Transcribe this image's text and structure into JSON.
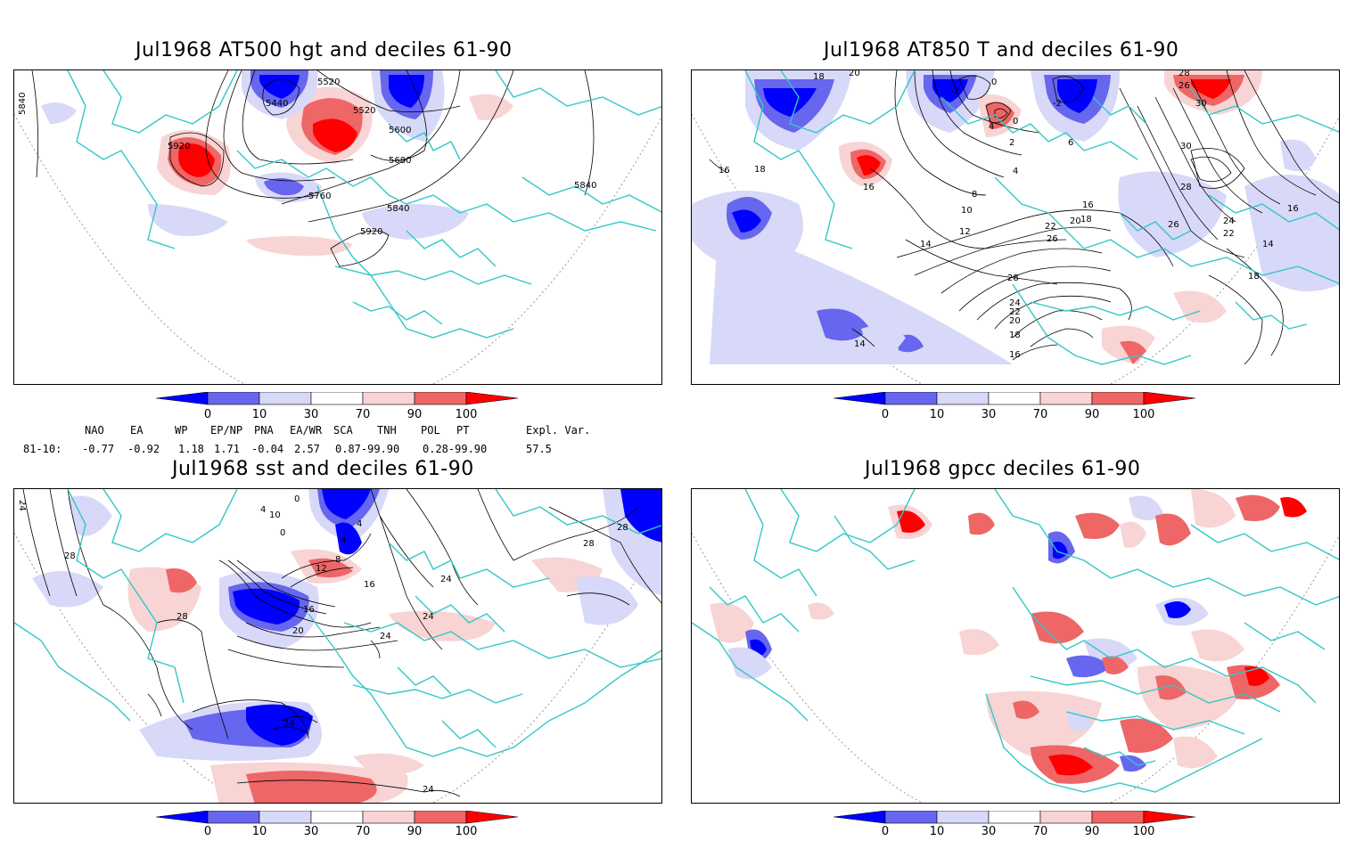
{
  "panels": [
    {
      "id": "p1",
      "title": "Jul1968 AT500 hgt and deciles 61-90",
      "contour_labels": [
        "5840",
        "5520",
        "5440",
        "5520",
        "5600",
        "5920",
        "5680",
        "5760",
        "5840",
        "5920",
        "5840"
      ]
    },
    {
      "id": "p2",
      "title": "Jul1968 AT850 T and deciles 61-90",
      "contour_labels": [
        "18",
        "20",
        "-2",
        "0",
        "-2",
        "26",
        "28",
        "30",
        "4",
        "0",
        "2",
        "6",
        "16",
        "4",
        "30",
        "16",
        "18",
        "8",
        "10",
        "12",
        "16",
        "18",
        "20",
        "22",
        "14",
        "26",
        "24",
        "22",
        "26",
        "28",
        "16",
        "14",
        "18",
        "28",
        "24",
        "22",
        "20",
        "18",
        "16",
        "14"
      ]
    },
    {
      "id": "p3",
      "title": "Jul1968 sst and deciles 61-90",
      "contour_labels": [
        "24",
        "0",
        "4",
        "10",
        "0",
        "4",
        "4",
        "28",
        "28",
        "12",
        "8",
        "16",
        "28",
        "16",
        "24",
        "20",
        "24",
        "28",
        "24",
        "24",
        "24"
      ]
    },
    {
      "id": "p4",
      "title": "Jul1968 gpcc deciles 61-90",
      "contour_labels": []
    }
  ],
  "colorbar": {
    "ticks": [
      "0",
      "10",
      "30",
      "70",
      "90",
      "100"
    ],
    "colors": {
      "dark_blue": "#0000ff",
      "mid_blue": "#6666ee",
      "light_blue": "#d8d8f8",
      "white": "#ffffff",
      "light_red": "#f8d4d4",
      "mid_red": "#ee6666",
      "dark_red": "#ff0000"
    }
  },
  "indices": {
    "header_names": [
      "NAO",
      "EA",
      "WP",
      "EP/NP",
      "PNA",
      "EA/WR",
      "SCA",
      "TNH",
      "POL",
      "PT",
      "Expl. Var."
    ],
    "row_label": "81-10:",
    "values": [
      "-0.77",
      "-0.92",
      "1.18",
      "1.71",
      "-0.04",
      "2.57",
      "0.87-99.90",
      "0.28-99.90",
      "57.5"
    ]
  },
  "map_colors": {
    "coast": "#33c7c7",
    "contour": "#000000",
    "grid": "#999999"
  }
}
